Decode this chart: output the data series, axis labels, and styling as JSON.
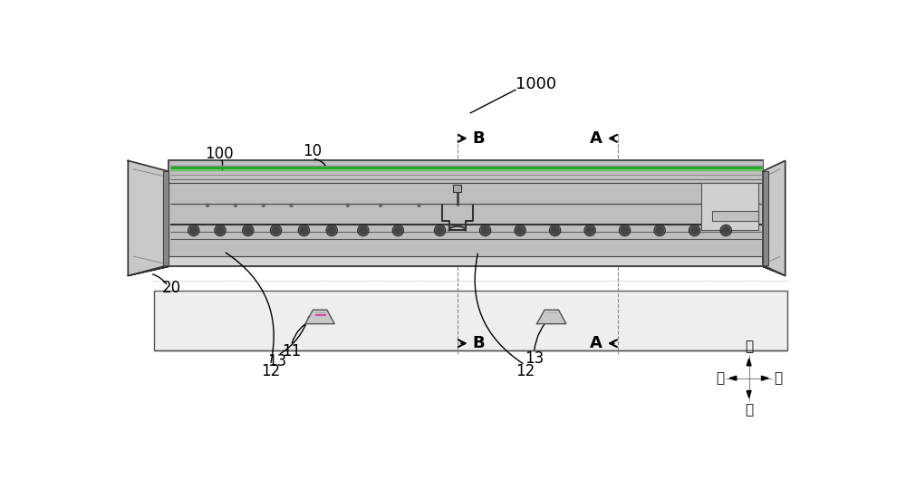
{
  "fig_width": 10.0,
  "fig_height": 5.29,
  "dpi": 100,
  "bg_color": "#ffffff",
  "label_1000": "1000",
  "label_100": "100",
  "label_10": "10",
  "label_11": "11",
  "label_12_left": "12",
  "label_12_right": "12",
  "label_13_left": "13",
  "label_13_right": "13",
  "label_20": "20",
  "label_A_top": "A",
  "label_A_bot": "A",
  "label_B_top": "B",
  "label_B_bot": "B",
  "dir_up": "上",
  "dir_down": "下",
  "dir_left": "左",
  "dir_right": "右"
}
